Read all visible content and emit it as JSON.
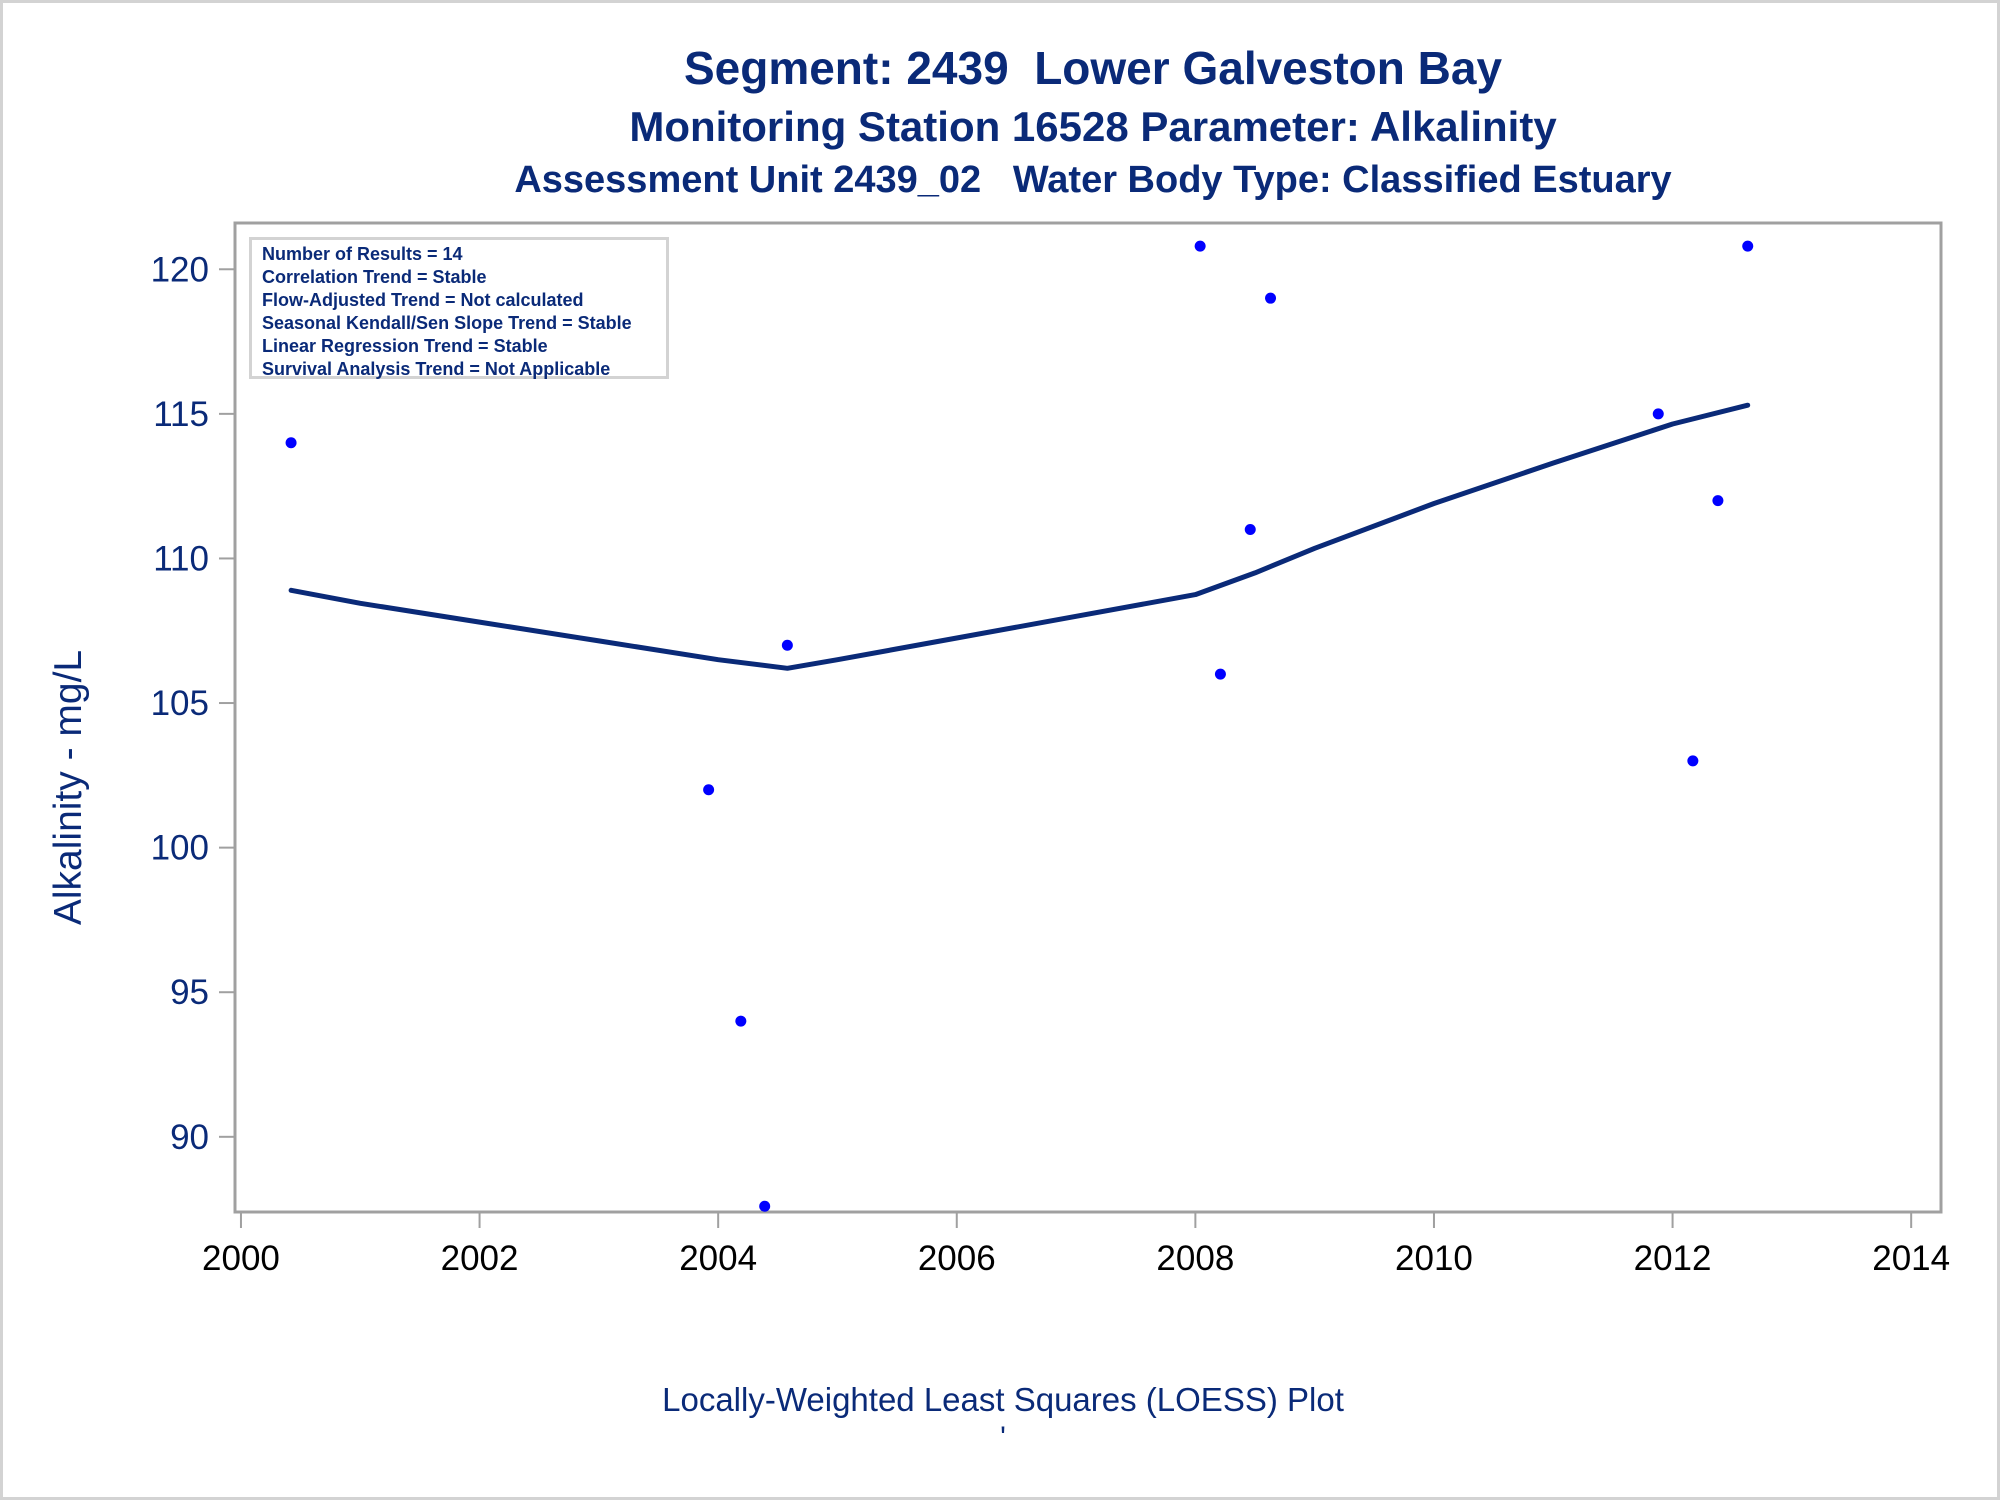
{
  "titles": {
    "line1": "Segment: 2439  Lower Galveston Bay",
    "line2": "Monitoring Station 16528 Parameter: Alkalinity",
    "line3": "Assessment Unit 2439_02   Water Body Type: Classified Estuary"
  },
  "stats": [
    "Number of Results = 14",
    "Correlation Trend = Stable",
    "Flow-Adjusted Trend = Not calculated",
    "Seasonal Kendall/Sen Slope Trend = Stable",
    "Linear Regression Trend = Stable",
    "Survival Analysis Trend = Not Applicable"
  ],
  "footer": {
    "label": "Locally-Weighted Least Squares (LOESS) Plot",
    "mark": "'"
  },
  "colors": {
    "text": "#0a2a78",
    "points": "#0000ff",
    "loess_line": "#0a2a78",
    "frame": "#a0a0a0"
  },
  "chart_data": {
    "type": "scatter",
    "xlabel": "",
    "ylabel": "Alkalinity - mg/L",
    "xlim": [
      1999.95,
      2014.25
    ],
    "ylim": [
      87.4,
      121.6
    ],
    "xticks": [
      2000,
      2002,
      2004,
      2006,
      2008,
      2010,
      2012,
      2014
    ],
    "yticks": [
      90,
      95,
      100,
      105,
      110,
      115,
      120
    ],
    "grid": false,
    "points": {
      "x": [
        2000.42,
        2000.58,
        2003.92,
        2004.19,
        2004.39,
        2004.58,
        2008.04,
        2008.21,
        2008.46,
        2008.63,
        2011.88,
        2012.17,
        2012.38,
        2012.63
      ],
      "y": [
        114,
        120,
        102,
        94,
        87.6,
        107,
        120.8,
        106,
        111,
        119,
        115,
        103,
        112,
        120.8
      ]
    },
    "loess": {
      "x": [
        2000.42,
        2001,
        2002,
        2003,
        2004,
        2004.58,
        2005,
        2006,
        2007,
        2008,
        2008.5,
        2009,
        2010,
        2011,
        2012,
        2012.63
      ],
      "y": [
        108.9,
        108.45,
        107.8,
        107.15,
        106.5,
        106.2,
        106.5,
        107.25,
        108.0,
        108.75,
        109.5,
        110.35,
        111.9,
        113.3,
        114.65,
        115.3
      ]
    }
  }
}
